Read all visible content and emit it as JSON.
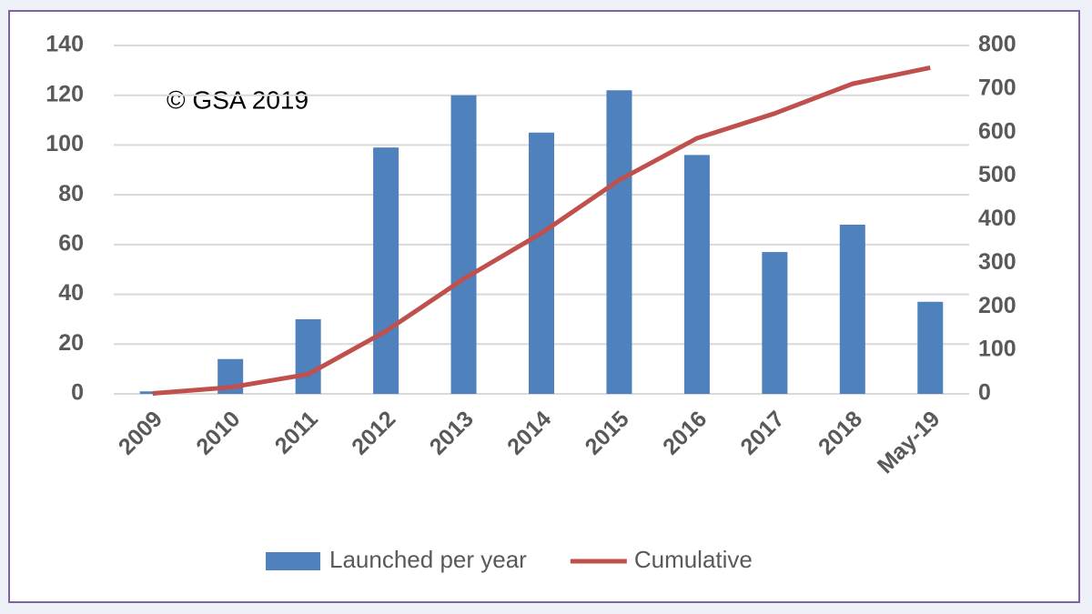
{
  "chart_data": {
    "type": "bar",
    "annotation": "© GSA 2019",
    "categories": [
      "2009",
      "2010",
      "2011",
      "2012",
      "2013",
      "2014",
      "2015",
      "2016",
      "2017",
      "2018",
      "May-19"
    ],
    "series": [
      {
        "name": "Launched per year",
        "type": "bar",
        "color": "#4f81bd",
        "values": [
          1,
          14,
          30,
          99,
          120,
          105,
          122,
          96,
          57,
          68,
          37
        ]
      },
      {
        "name": "Cumulative",
        "type": "line",
        "axis": "y2",
        "color": "#c0504d",
        "values": [
          1,
          15,
          45,
          144,
          264,
          369,
          491,
          587,
          644,
          712,
          749
        ]
      }
    ],
    "ylim": [
      0,
      140
    ],
    "yticks": [
      0,
      20,
      40,
      60,
      80,
      100,
      120,
      140
    ],
    "y2lim": [
      0,
      800
    ],
    "y2ticks": [
      0,
      100,
      200,
      300,
      400,
      500,
      600,
      700,
      800
    ],
    "grid": true,
    "legend": "bottom"
  }
}
